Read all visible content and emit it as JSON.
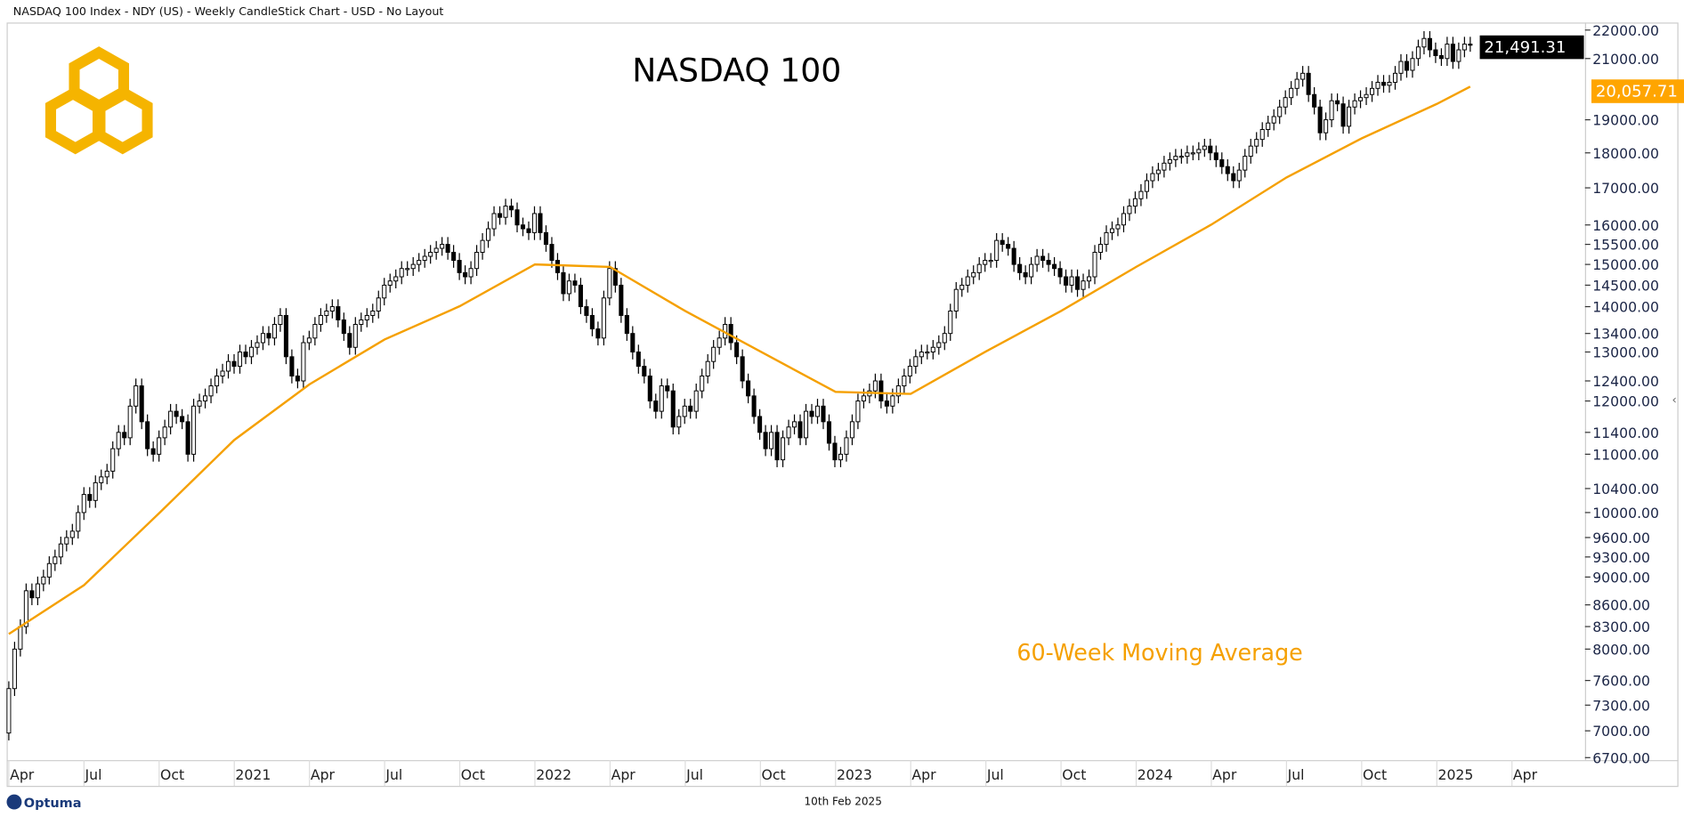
{
  "header": {
    "window_title": "NASDAQ 100 Index - NDY (US) - Weekly CandleStick Chart - USD - No Layout"
  },
  "footer": {
    "brand": "Optuma",
    "date": "10th Feb 2025"
  },
  "colors": {
    "logo": "#F5B400",
    "ma": "#F5A000",
    "price_tag": "#000000",
    "ma_tag": "#FFA500",
    "axis_text": "#1C2647"
  },
  "icons": {
    "logo": "interlocking-hexagons-logo",
    "collapse": "chevron-left-icon"
  },
  "chart_data": {
    "type": "candlestick",
    "title": "NASDAQ 100",
    "annotation": "60-Week Moving Average",
    "y_scale": "log",
    "ylim": [
      6700,
      22000
    ],
    "grid": false,
    "y_ticks": [
      "22000.00",
      "21000.00",
      "19000.00",
      "18000.00",
      "17000.00",
      "16000.00",
      "15500.00",
      "15000.00",
      "14500.00",
      "14000.00",
      "13400.00",
      "13000.00",
      "12400.00",
      "12000.00",
      "11400.00",
      "11000.00",
      "10400.00",
      "10000.00",
      "9600.00",
      "9300.00",
      "9000.00",
      "8600.00",
      "8300.00",
      "8000.00",
      "7600.00",
      "7300.00",
      "7000.00",
      "6700.00"
    ],
    "x_ticks": [
      "Apr",
      "Jul",
      "Oct",
      "2021",
      "Apr",
      "Jul",
      "Oct",
      "2022",
      "Apr",
      "Jul",
      "Oct",
      "2023",
      "Apr",
      "Jul",
      "Oct",
      "2024",
      "Apr",
      "Jul",
      "Oct",
      "2025",
      "Apr"
    ],
    "last_price": "21,491.31",
    "last_ma": "20,057.71",
    "weekly_close": [
      7500,
      8000,
      8300,
      8800,
      8700,
      8900,
      9000,
      9200,
      9300,
      9500,
      9600,
      9700,
      10000,
      10300,
      10200,
      10500,
      10600,
      10700,
      11100,
      11400,
      11300,
      11900,
      12300,
      11600,
      11100,
      11000,
      11300,
      11500,
      11800,
      11700,
      11600,
      11000,
      11900,
      12000,
      12100,
      12300,
      12500,
      12600,
      12800,
      12700,
      13000,
      12900,
      13100,
      13200,
      13400,
      13300,
      13600,
      13800,
      12900,
      12500,
      12400,
      13200,
      13300,
      13600,
      13800,
      13900,
      14000,
      13700,
      13400,
      13100,
      13600,
      13700,
      13800,
      13900,
      14200,
      14500,
      14600,
      14700,
      14900,
      14900,
      15000,
      15100,
      15200,
      15300,
      15400,
      15500,
      15300,
      15100,
      14800,
      14700,
      14900,
      15300,
      15600,
      15900,
      16300,
      16200,
      16500,
      16400,
      16000,
      15900,
      15800,
      16300,
      15800,
      15500,
      15100,
      14800,
      14300,
      14600,
      14500,
      14000,
      13800,
      13500,
      13300,
      14200,
      14900,
      14500,
      13800,
      13400,
      13000,
      12700,
      12500,
      12000,
      11800,
      12300,
      12200,
      11500,
      11700,
      11900,
      11800,
      12200,
      12500,
      12800,
      13100,
      13300,
      13600,
      13200,
      12900,
      12400,
      12100,
      11700,
      11400,
      11100,
      11400,
      10900,
      11300,
      11500,
      11600,
      11300,
      11800,
      11700,
      11900,
      11600,
      11200,
      10900,
      11000,
      11300,
      11600,
      12000,
      12100,
      12200,
      12400,
      12000,
      11900,
      12100,
      12300,
      12500,
      12700,
      12900,
      13000,
      13000,
      13100,
      13200,
      13400,
      13900,
      14400,
      14500,
      14700,
      14800,
      15000,
      15100,
      15100,
      15600,
      15500,
      15400,
      15000,
      14800,
      14700,
      15000,
      15200,
      15100,
      15000,
      14900,
      14700,
      14500,
      14700,
      14400,
      14600,
      14700,
      15300,
      15500,
      15800,
      15900,
      16000,
      16300,
      16500,
      16700,
      16900,
      17200,
      17400,
      17500,
      17700,
      17800,
      17900,
      17900,
      18000,
      18000,
      18100,
      18200,
      18000,
      17800,
      17600,
      17400,
      17200,
      17500,
      17900,
      18200,
      18400,
      18700,
      18900,
      19100,
      19400,
      19700,
      20000,
      20300,
      20500,
      19800,
      19400,
      18600,
      19000,
      19600,
      19500,
      18800,
      19400,
      19600,
      19700,
      19800,
      20000,
      20200,
      20100,
      20200,
      20500,
      20900,
      20600,
      21000,
      21400,
      21700,
      21300,
      21100,
      21000,
      21500,
      20900,
      21300,
      21500,
      21491.31
    ],
    "moving_average_60w": [
      [
        "2020-04",
        8200
      ],
      [
        "2020-07",
        8880
      ],
      [
        "2020-10",
        9990
      ],
      [
        "2021-01",
        11260
      ],
      [
        "2021-04",
        12330
      ],
      [
        "2021-07",
        13270
      ],
      [
        "2021-10",
        14010
      ],
      [
        "2022-01",
        15000
      ],
      [
        "2022-04",
        14940
      ],
      [
        "2022-07",
        13900
      ],
      [
        "2022-10",
        13010
      ],
      [
        "2023-01",
        12180
      ],
      [
        "2023-04",
        12140
      ],
      [
        "2023-07",
        13010
      ],
      [
        "2023-10",
        13900
      ],
      [
        "2024-01",
        14940
      ],
      [
        "2024-04",
        16010
      ],
      [
        "2024-07",
        17290
      ],
      [
        "2024-10",
        18430
      ],
      [
        "2025-01",
        19500
      ],
      [
        "2025-02",
        20057.71
      ]
    ]
  }
}
